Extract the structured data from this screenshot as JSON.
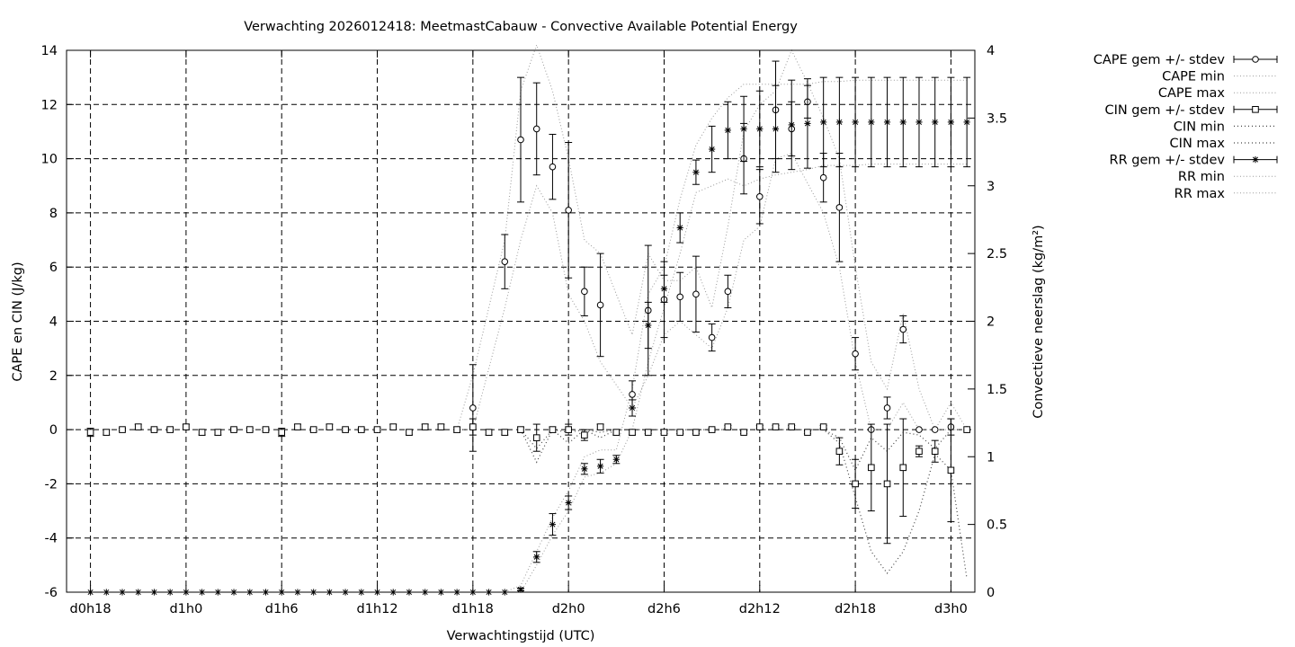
{
  "chart_data": {
    "type": "line",
    "title": "Verwachting 2026012418: MeetmastCabauw - Convective Available Potential Energy",
    "xlabel": "Verwachtingstijd (UTC)",
    "ylabel": "CAPE en CIN (J/kg)",
    "y2label": "Convectieve neerslag (kg/m²)",
    "x_ticks": [
      "d0h18",
      "d1h0",
      "d1h6",
      "d1h12",
      "d1h18",
      "d2h0",
      "d2h6",
      "d2h12",
      "d2h18",
      "d3h0"
    ],
    "x_unit": "forecast hour since d0h0",
    "xlim": [
      16.5,
      73.5
    ],
    "ylim": [
      -6,
      14
    ],
    "y_ticks": [
      -6,
      -4,
      -2,
      0,
      2,
      4,
      6,
      8,
      10,
      12,
      14
    ],
    "y2lim": [
      0,
      4
    ],
    "y2_ticks": [
      0,
      0.5,
      1,
      1.5,
      2,
      2.5,
      3,
      3.5,
      4
    ],
    "grid": true,
    "legend_position": "outside-right",
    "legend": [
      "CAPE gem +/- stdev",
      "CAPE min",
      "CAPE max",
      "CIN gem +/- stdev",
      "CIN min",
      "CIN max",
      "RR gem +/- stdev",
      "RR min",
      "RR max"
    ],
    "series": [
      {
        "name": "CAPE gem +/- stdev",
        "axis": "y",
        "marker": "circle",
        "x": [
          42,
          44,
          45,
          46,
          47,
          48,
          49,
          50,
          52,
          53,
          54,
          55,
          56,
          57,
          58,
          59,
          60,
          61,
          62,
          63,
          64,
          65,
          66,
          67,
          68,
          69,
          70,
          71,
          72,
          73
        ],
        "mean": [
          0.8,
          6.2,
          10.7,
          11.1,
          9.7,
          8.1,
          5.1,
          4.6,
          1.3,
          4.4,
          4.8,
          4.9,
          5.0,
          3.4,
          5.1,
          10.0,
          8.6,
          11.8,
          11.1,
          12.1,
          9.3,
          8.2,
          2.8,
          0.0,
          0.8,
          3.7,
          0.0,
          0.0,
          0.1,
          0.0
        ],
        "stdev": [
          1.6,
          1.0,
          2.3,
          1.7,
          1.2,
          2.5,
          0.9,
          1.9,
          0.5,
          2.4,
          1.4,
          0.9,
          1.4,
          0.5,
          0.6,
          1.3,
          1.0,
          1.8,
          1.0,
          0.6,
          0.9,
          2.0,
          0.6,
          0.0,
          0.4,
          0.5,
          0.0,
          0.0,
          0.3,
          0.0
        ]
      },
      {
        "name": "CAPE min",
        "axis": "y",
        "x": [
          41,
          42,
          44,
          45,
          46,
          47,
          48,
          49,
          50,
          52,
          53,
          54,
          55,
          56,
          57,
          58,
          59,
          60,
          61,
          62,
          64,
          65,
          66,
          67,
          68,
          69,
          70,
          71,
          72,
          73
        ],
        "values": [
          0,
          0,
          4.5,
          7.0,
          9.0,
          8.0,
          5.0,
          4.0,
          2.5,
          0.8,
          2.0,
          3.5,
          4.0,
          3.5,
          3.0,
          4.5,
          7.0,
          7.5,
          10.0,
          10.2,
          8.0,
          6.0,
          2.5,
          0,
          0,
          1.0,
          0,
          0,
          0,
          0
        ]
      },
      {
        "name": "CAPE max",
        "axis": "y",
        "x": [
          41,
          42,
          44,
          45,
          46,
          47,
          48,
          49,
          50,
          52,
          53,
          54,
          55,
          56,
          57,
          58,
          59,
          60,
          61,
          62,
          63,
          64,
          65,
          66,
          67,
          68,
          69,
          70,
          71,
          72,
          73
        ],
        "values": [
          0,
          2.0,
          7.0,
          12.5,
          14.2,
          12.5,
          10.0,
          7.0,
          6.5,
          3.5,
          6.5,
          5.5,
          5.5,
          6.0,
          4.5,
          7.5,
          11.0,
          12.0,
          12.5,
          14.0,
          12.8,
          11.5,
          10.0,
          6.0,
          2.5,
          1.5,
          4.3,
          1.5,
          0,
          1.0,
          0
        ]
      },
      {
        "name": "CIN gem +/- stdev",
        "axis": "y",
        "marker": "square",
        "x": [
          18,
          19,
          20,
          21,
          22,
          23,
          24,
          25,
          26,
          27,
          28,
          29,
          30,
          31,
          32,
          33,
          34,
          35,
          36,
          37,
          38,
          39,
          40,
          41,
          42,
          43,
          44,
          45,
          46,
          47,
          48,
          49,
          50,
          51,
          52,
          53,
          54,
          55,
          56,
          57,
          58,
          59,
          60,
          61,
          62,
          63,
          64,
          65,
          66,
          67,
          68,
          69,
          70,
          71,
          72,
          73
        ],
        "mean": [
          -0.1,
          -0.1,
          0.0,
          0.1,
          0.0,
          0.0,
          0.1,
          -0.1,
          -0.1,
          0.0,
          0.0,
          0.0,
          -0.1,
          0.1,
          0.0,
          0.1,
          0.0,
          0.0,
          0.0,
          0.1,
          -0.1,
          0.1,
          0.1,
          0.0,
          0.1,
          -0.1,
          -0.1,
          0.0,
          -0.3,
          0.0,
          0.0,
          -0.2,
          0.1,
          -0.1,
          -0.1,
          -0.1,
          -0.1,
          -0.1,
          -0.1,
          0.0,
          0.1,
          -0.1,
          0.1,
          0.1,
          0.1,
          -0.1,
          0.1,
          -0.8,
          -2.0,
          -1.4,
          -2.0,
          -1.4,
          -0.8,
          -0.8,
          -1.5,
          0.0
        ],
        "stdev": [
          0.15,
          0.1,
          0.05,
          0.1,
          0.05,
          0.05,
          0.1,
          0.1,
          0.1,
          0.05,
          0.05,
          0.05,
          0.15,
          0.1,
          0.05,
          0.1,
          0.05,
          0.05,
          0.05,
          0.1,
          0.1,
          0.1,
          0.1,
          0.1,
          0.3,
          0.1,
          0.1,
          0.1,
          0.5,
          0.1,
          0.2,
          0.2,
          0.1,
          0.1,
          0.1,
          0.05,
          0.05,
          0.05,
          0.05,
          0.05,
          0.05,
          0.05,
          0.05,
          0.05,
          0.05,
          0.05,
          0.05,
          0.5,
          0.9,
          1.6,
          2.2,
          1.8,
          0.2,
          0.4,
          1.9,
          0.0
        ]
      },
      {
        "name": "CIN min",
        "axis": "y",
        "x": [
          45,
          46,
          47,
          48,
          49,
          50,
          51,
          52,
          64,
          65,
          66,
          67,
          68,
          69,
          70,
          71,
          72,
          73
        ],
        "values": [
          0,
          -1.2,
          0,
          -0.5,
          0,
          -0.3,
          0,
          0,
          0,
          -0.5,
          -2.5,
          -4.5,
          -5.3,
          -4.5,
          -3.0,
          -0.9,
          -1.5,
          -5.5
        ]
      },
      {
        "name": "CIN max",
        "axis": "y",
        "x": [
          45,
          46,
          47,
          48,
          49,
          50,
          51,
          52,
          64,
          65,
          66,
          67,
          68,
          69,
          70,
          71,
          72,
          73
        ],
        "values": [
          0,
          -0.7,
          0,
          -0.1,
          0,
          -0.1,
          0,
          0,
          0,
          -0.3,
          -1.5,
          -0.3,
          -0.8,
          -0.1,
          -0.2,
          -0.7,
          0,
          0
        ]
      },
      {
        "name": "RR gem +/- stdev",
        "axis": "y2",
        "marker": "star",
        "x": [
          18,
          19,
          20,
          21,
          22,
          23,
          24,
          25,
          26,
          27,
          28,
          29,
          30,
          31,
          32,
          33,
          34,
          35,
          36,
          37,
          38,
          39,
          40,
          41,
          42,
          43,
          44,
          45,
          46,
          47,
          48,
          49,
          50,
          51,
          52,
          53,
          54,
          55,
          56,
          57,
          58,
          59,
          60,
          61,
          62,
          63,
          64,
          65,
          66,
          67,
          68,
          69,
          70,
          71,
          72,
          73
        ],
        "mean": [
          0,
          0,
          0,
          0,
          0,
          0,
          0,
          0,
          0,
          0,
          0,
          0,
          0,
          0,
          0,
          0,
          0,
          0,
          0,
          0,
          0,
          0,
          0,
          0,
          0,
          0,
          0,
          0.02,
          0.26,
          0.5,
          0.66,
          0.91,
          0.93,
          0.98,
          1.36,
          1.97,
          2.24,
          2.69,
          3.1,
          3.27,
          3.41,
          3.42,
          3.42,
          3.42,
          3.45,
          3.46,
          3.47,
          3.47,
          3.47,
          3.47,
          3.47,
          3.47,
          3.47,
          3.47,
          3.47,
          3.47
        ],
        "stdev": [
          0,
          0,
          0,
          0,
          0,
          0,
          0,
          0,
          0,
          0,
          0,
          0,
          0,
          0,
          0,
          0,
          0,
          0,
          0,
          0,
          0,
          0,
          0,
          0,
          0,
          0,
          0,
          0.01,
          0.04,
          0.08,
          0.05,
          0.04,
          0.05,
          0.03,
          0.06,
          0.17,
          0.1,
          0.11,
          0.09,
          0.17,
          0.21,
          0.24,
          0.28,
          0.32,
          0.33,
          0.33,
          0.33,
          0.33,
          0.33,
          0.33,
          0.33,
          0.33,
          0.33,
          0.33,
          0.33,
          0.33
        ]
      },
      {
        "name": "RR min",
        "axis": "y2",
        "x": [
          44,
          45,
          46,
          47,
          48,
          49,
          50,
          51,
          52,
          53,
          54,
          55,
          56,
          57,
          58,
          59,
          60,
          61,
          62,
          63,
          64,
          65,
          66,
          67,
          68,
          69,
          70,
          71,
          72,
          73
        ],
        "values": [
          0,
          0,
          0.2,
          0.42,
          0.6,
          0.85,
          0.88,
          0.95,
          1.2,
          1.7,
          2.1,
          2.5,
          2.95,
          3.0,
          3.05,
          3.0,
          3.05,
          3.08,
          3.1,
          3.12,
          3.15,
          3.15,
          3.15,
          3.16,
          3.16,
          3.16,
          3.16,
          3.16,
          3.16,
          3.16
        ]
      },
      {
        "name": "RR max",
        "axis": "y2",
        "x": [
          44,
          45,
          46,
          47,
          48,
          49,
          50,
          51,
          52,
          53,
          54,
          55,
          56,
          57,
          58,
          59,
          60,
          61,
          62,
          63,
          64,
          65,
          66,
          67,
          68,
          69,
          70,
          71,
          72,
          73
        ],
        "values": [
          0,
          0.05,
          0.3,
          0.55,
          0.75,
          1.0,
          1.05,
          1.05,
          1.5,
          2.2,
          2.4,
          2.9,
          3.3,
          3.5,
          3.65,
          3.75,
          3.75,
          3.75,
          3.75,
          3.75,
          3.77,
          3.77,
          3.78,
          3.78,
          3.78,
          3.78,
          3.78,
          3.78,
          3.78,
          3.78
        ]
      }
    ]
  }
}
